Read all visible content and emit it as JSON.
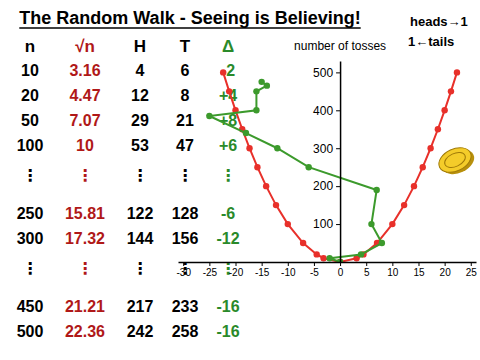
{
  "chart_data": {
    "type": "line",
    "title": "The Random Walk - Seeing is Believing!",
    "y_label": "number of tosses",
    "annotations": [
      "heads→1",
      "1←tails"
    ],
    "xlim": [
      -31,
      26
    ],
    "xticks": [
      -30,
      -25,
      -20,
      -15,
      -10,
      -5,
      0,
      5,
      10,
      15,
      20,
      25
    ],
    "ylim": [
      0,
      530
    ],
    "yticks": [
      100,
      200,
      300,
      400,
      500
    ],
    "grid": false,
    "series": [
      {
        "color": "#e8302a",
        "marker": "circle",
        "line_style": "solid",
        "x": [
          0,
          3.16,
          4.47,
          7.07,
          10,
          12.25,
          14.14,
          15.81,
          17.32,
          18.71,
          20,
          21.21,
          22.36
        ],
        "values": [
          0,
          10,
          20,
          50,
          100,
          150,
          200,
          250,
          300,
          350,
          400,
          450,
          500
        ]
      },
      {
        "color": "#e8302a",
        "marker": "circle",
        "line_style": "solid",
        "x": [
          0,
          -3.16,
          -4.47,
          -7.07,
          -10,
          -12.25,
          -14.14,
          -15.81,
          -17.32,
          -18.71,
          -20,
          -21.21,
          -22.36
        ],
        "values": [
          0,
          10,
          20,
          50,
          100,
          150,
          200,
          250,
          300,
          350,
          400,
          450,
          500
        ]
      },
      {
        "color": "#3c9a2c",
        "marker": "circle",
        "line_style": "solid",
        "x": [
          0,
          -2,
          4,
          8,
          6,
          7,
          -6,
          -12,
          -18,
          -25,
          -16,
          -16,
          -14,
          -15
        ],
        "values": [
          0,
          10,
          20,
          50,
          100,
          190,
          250,
          300,
          340,
          385,
          400,
          450,
          465,
          475
        ]
      }
    ]
  },
  "table": {
    "header": [
      "n",
      "√n",
      "H",
      "T",
      "Δ"
    ],
    "rows": [
      [
        "10",
        "3.16",
        "4",
        "6",
        "-2"
      ],
      [
        "20",
        "4.47",
        "12",
        "8",
        "+4"
      ],
      [
        "50",
        "7.07",
        "29",
        "21",
        "+8"
      ],
      [
        "100",
        "10",
        "53",
        "47",
        "+6"
      ],
      [
        "⋮",
        "⋮",
        "⋮",
        "⋮",
        "⋮"
      ],
      [
        "250",
        "15.81",
        "122",
        "128",
        "-6"
      ],
      [
        "300",
        "17.32",
        "144",
        "156",
        "-12"
      ],
      [
        "⋮",
        "⋮",
        "⋮",
        "⋮",
        "⋮"
      ],
      [
        "450",
        "21.21",
        "217",
        "233",
        "-16"
      ],
      [
        "500",
        "22.36",
        "242",
        "258",
        "-16"
      ]
    ]
  }
}
